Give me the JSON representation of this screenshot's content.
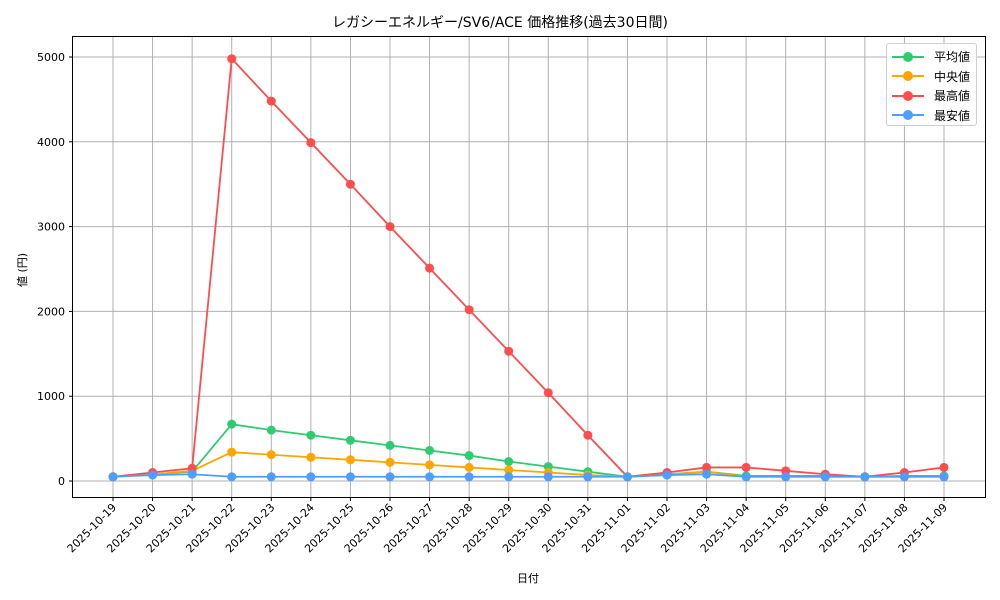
{
  "chart_data": {
    "type": "line",
    "title": "レガシーエネルギー/SV6/ACE 価格推移(過去30日間)",
    "xlabel": "日付",
    "ylabel": "値 (円)",
    "ylim": [
      -200,
      5250
    ],
    "yticks": [
      0,
      1000,
      2000,
      3000,
      4000,
      5000
    ],
    "grid": true,
    "legend_position": "upper right",
    "categories": [
      "2025-10-19",
      "2025-10-20",
      "2025-10-21",
      "2025-10-22",
      "2025-10-23",
      "2025-10-24",
      "2025-10-25",
      "2025-10-26",
      "2025-10-27",
      "2025-10-28",
      "2025-10-29",
      "2025-10-30",
      "2025-10-31",
      "2025-11-01",
      "2025-11-02",
      "2025-11-03",
      "2025-11-04",
      "2025-11-05",
      "2025-11-06",
      "2025-11-07",
      "2025-11-08",
      "2025-11-09"
    ],
    "series": [
      {
        "name": "平均値",
        "color": "#2ecc71",
        "values": [
          50,
          80,
          110,
          670,
          600,
          540,
          480,
          420,
          360,
          300,
          230,
          170,
          110,
          50,
          80,
          110,
          60,
          60,
          60,
          50,
          60,
          60
        ]
      },
      {
        "name": "中央値",
        "color": "#ffa500",
        "values": [
          50,
          75,
          120,
          340,
          310,
          280,
          250,
          220,
          190,
          160,
          130,
          100,
          70,
          50,
          75,
          110,
          50,
          50,
          50,
          50,
          50,
          50
        ]
      },
      {
        "name": "最高値",
        "color": "#ff4d4d",
        "values": [
          50,
          100,
          150,
          4980,
          4480,
          3990,
          3500,
          3000,
          2510,
          2020,
          1530,
          1040,
          540,
          50,
          100,
          160,
          160,
          120,
          80,
          50,
          100,
          160
        ]
      },
      {
        "name": "最安値",
        "color": "#4d9eff",
        "values": [
          50,
          70,
          80,
          50,
          50,
          50,
          50,
          50,
          50,
          50,
          50,
          50,
          50,
          50,
          70,
          80,
          50,
          50,
          50,
          50,
          50,
          50
        ]
      }
    ]
  },
  "legend": {
    "items": [
      {
        "label": "平均値",
        "color": "#2ecc71"
      },
      {
        "label": "中央値",
        "color": "#ffa500"
      },
      {
        "label": "最高値",
        "color": "#ff4d4d"
      },
      {
        "label": "最安値",
        "color": "#4d9eff"
      }
    ]
  }
}
